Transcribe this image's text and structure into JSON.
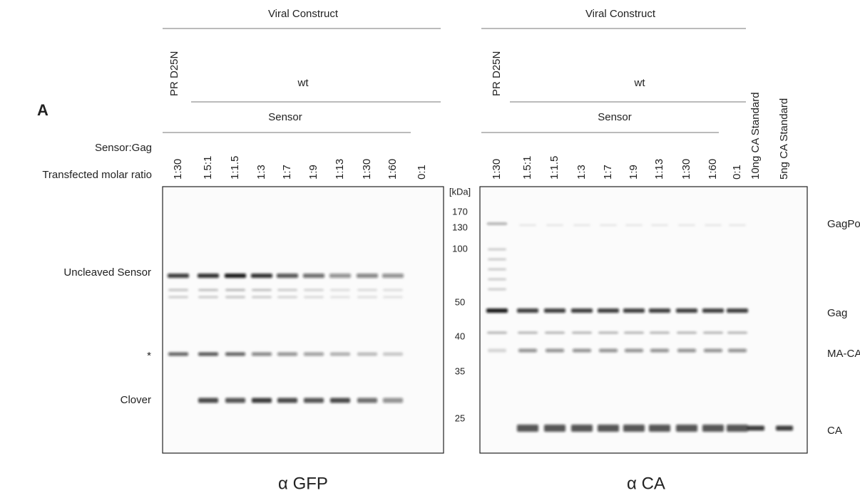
{
  "panel_label": "A",
  "row_labels": [
    "Sensor:Gag",
    "Transfected molar ratio"
  ],
  "markers": {
    "unit": "[kDa]",
    "sizes": [
      "170",
      "130",
      "100",
      "50",
      "40",
      "35",
      "25"
    ]
  },
  "blots": [
    {
      "header": "Viral Construct",
      "mutant": "PR D25N",
      "wild_type": "wt",
      "sensor": "Sensor",
      "lanes": [
        "1:30",
        "1.5:1",
        "1:1.5",
        "1:3",
        "1:7",
        "1:9",
        "1:13",
        "1:30",
        "1:60",
        "0:1"
      ],
      "band_labels": [
        "Uncleaved Sensor",
        "*",
        "Clover"
      ],
      "antibody": "α GFP"
    },
    {
      "header": "Viral Construct",
      "mutant": "PR D25N",
      "wild_type": "wt",
      "sensor": "Sensor",
      "lanes": [
        "1:30",
        "1.5:1",
        "1:1.5",
        "1:3",
        "1:7",
        "1:9",
        "1:13",
        "1:30",
        "1:60",
        "0:1",
        "10ng CA Standard",
        "5ng CA Standard"
      ],
      "band_labels": [
        "GagPol",
        "Gag",
        "MA-CA",
        "CA"
      ],
      "antibody": "α CA"
    }
  ]
}
